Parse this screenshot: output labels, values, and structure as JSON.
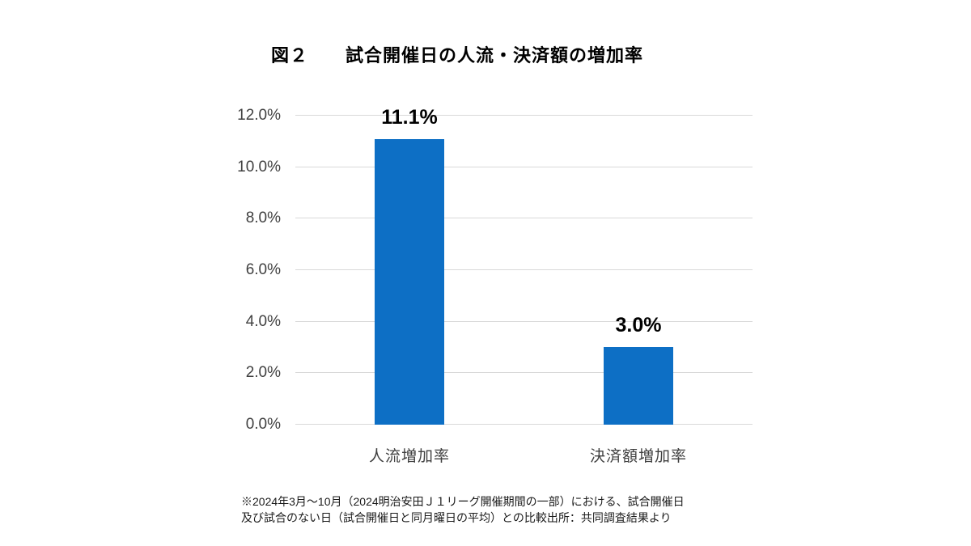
{
  "page": {
    "background": "#ffffff"
  },
  "chart_data": {
    "type": "bar",
    "title": "図２　　試合開催日の人流・決済額の増加率",
    "categories": [
      "人流増加率",
      "決済額増加率"
    ],
    "values": [
      11.1,
      3.0
    ],
    "value_labels": [
      "11.1%",
      "3.0%"
    ],
    "ylim": [
      0,
      12
    ],
    "ytick_step": 2,
    "ytick_labels": [
      "0.0%",
      "2.0%",
      "4.0%",
      "6.0%",
      "8.0%",
      "10.0%",
      "12.0%"
    ],
    "grid": true,
    "legend": "none",
    "bar_color": "#0d6fc5",
    "gridline_color": "#d9d9d9",
    "footnote_lines": [
      "※2024年3月～10月（2024明治安田Ｊ１リーグ開催期間の一部）における、試合開催日",
      "及び試合のない日（試合開催日と同月曜日の平均）との比較出所：共同調査結果より"
    ]
  }
}
